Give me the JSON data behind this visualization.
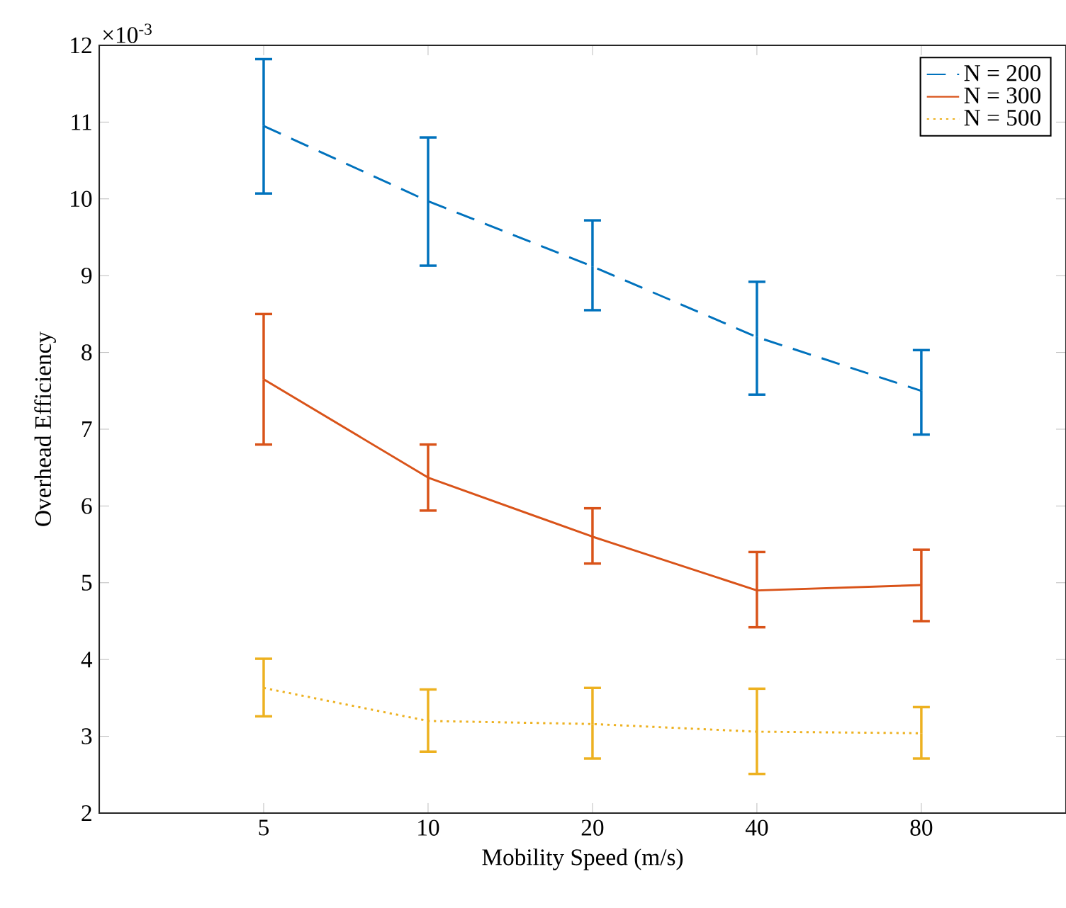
{
  "chart_data": {
    "type": "line",
    "xlabel": "Mobility Speed (m/s)",
    "ylabel": "Overhead Efficiency",
    "categories": [
      "5",
      "10",
      "20",
      "40",
      "80"
    ],
    "ylim": [
      2,
      12
    ],
    "yticks": [
      2,
      3,
      4,
      5,
      6,
      7,
      8,
      9,
      10,
      11,
      12
    ],
    "grid": false,
    "legend": "top right",
    "marker": "none",
    "annotations": [
      "×10$^{-3}$"
    ],
    "series": [
      {
        "name": "N = 200",
        "color": "#0072bd",
        "line_style": "dashed",
        "values": [
          10.95,
          9.97,
          9.12,
          8.2,
          7.5
        ],
        "errors": [
          [
            10.07,
            11.82
          ],
          [
            9.13,
            10.8
          ],
          [
            8.55,
            9.72
          ],
          [
            7.45,
            8.92
          ],
          [
            6.93,
            8.03
          ]
        ]
      },
      {
        "name": "N = 300",
        "color": "#d95319",
        "line_style": "solid",
        "values": [
          7.65,
          6.37,
          5.6,
          4.9,
          4.97
        ],
        "errors": [
          [
            6.8,
            8.5
          ],
          [
            5.94,
            6.8
          ],
          [
            5.25,
            5.97
          ],
          [
            4.42,
            5.4
          ],
          [
            4.5,
            5.43
          ]
        ]
      },
      {
        "name": "N = 500",
        "color": "#edb120",
        "line_style": "dotted",
        "values": [
          3.63,
          3.2,
          3.16,
          3.06,
          3.04
        ],
        "errors": [
          [
            3.26,
            4.01
          ],
          [
            2.8,
            3.61
          ],
          [
            2.71,
            3.63
          ],
          [
            2.51,
            3.62
          ],
          [
            2.71,
            3.38
          ]
        ]
      }
    ]
  }
}
